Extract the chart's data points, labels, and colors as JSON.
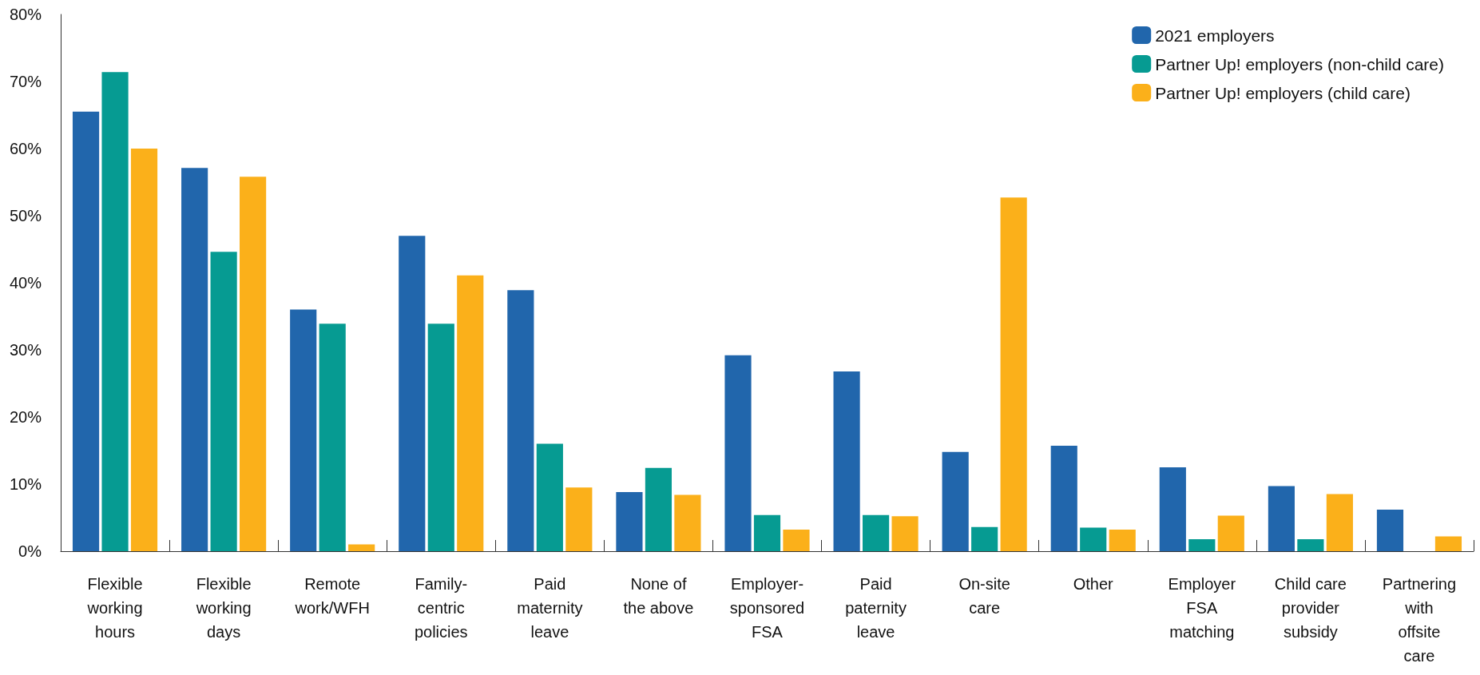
{
  "chart_data": {
    "type": "bar",
    "categories": [
      "Flexible\nworking\nhours",
      "Flexible\nworking\ndays",
      "Remote\nwork/WFH",
      "Family-\ncentric\npolicies",
      "Paid\nmaternity\nleave",
      "None of\nthe above",
      "Employer-\nsponsored\nFSA",
      "Paid\npaternity\nleave",
      "On-site\ncare",
      "Other",
      "Employer\nFSA\nmatching",
      "Child care\nprovider\nsubsidy",
      "Partnering\nwith\noffsite\ncare"
    ],
    "series": [
      {
        "name": "2021 employers",
        "color": "#2166ac",
        "values": [
          65.5,
          57.1,
          36.0,
          47.0,
          38.9,
          8.8,
          29.2,
          26.8,
          14.8,
          15.7,
          12.5,
          9.7,
          6.2
        ]
      },
      {
        "name": "Partner Up! employers (non-child care)",
        "color": "#069b92",
        "values": [
          71.4,
          44.6,
          33.9,
          33.9,
          16.0,
          12.4,
          5.4,
          5.4,
          3.6,
          3.5,
          1.8,
          1.8,
          0
        ]
      },
      {
        "name": "Partner Up! employers (child care)",
        "color": "#fbb01a",
        "values": [
          60.0,
          55.8,
          1.0,
          41.1,
          9.5,
          8.4,
          3.2,
          5.2,
          52.7,
          3.2,
          5.3,
          8.5,
          2.2
        ]
      }
    ],
    "ylim": [
      0,
      80
    ],
    "yticks": [
      {
        "value": 0,
        "label": "0%"
      },
      {
        "value": 10,
        "label": "10%"
      },
      {
        "value": 20,
        "label": "20%"
      },
      {
        "value": 30,
        "label": "30%"
      },
      {
        "value": 40,
        "label": "40%"
      },
      {
        "value": 50,
        "label": "50%"
      },
      {
        "value": 60,
        "label": "60%"
      },
      {
        "value": 70,
        "label": "70%"
      },
      {
        "value": 80,
        "label": "80%"
      }
    ],
    "grid": false,
    "legend": "top right"
  }
}
